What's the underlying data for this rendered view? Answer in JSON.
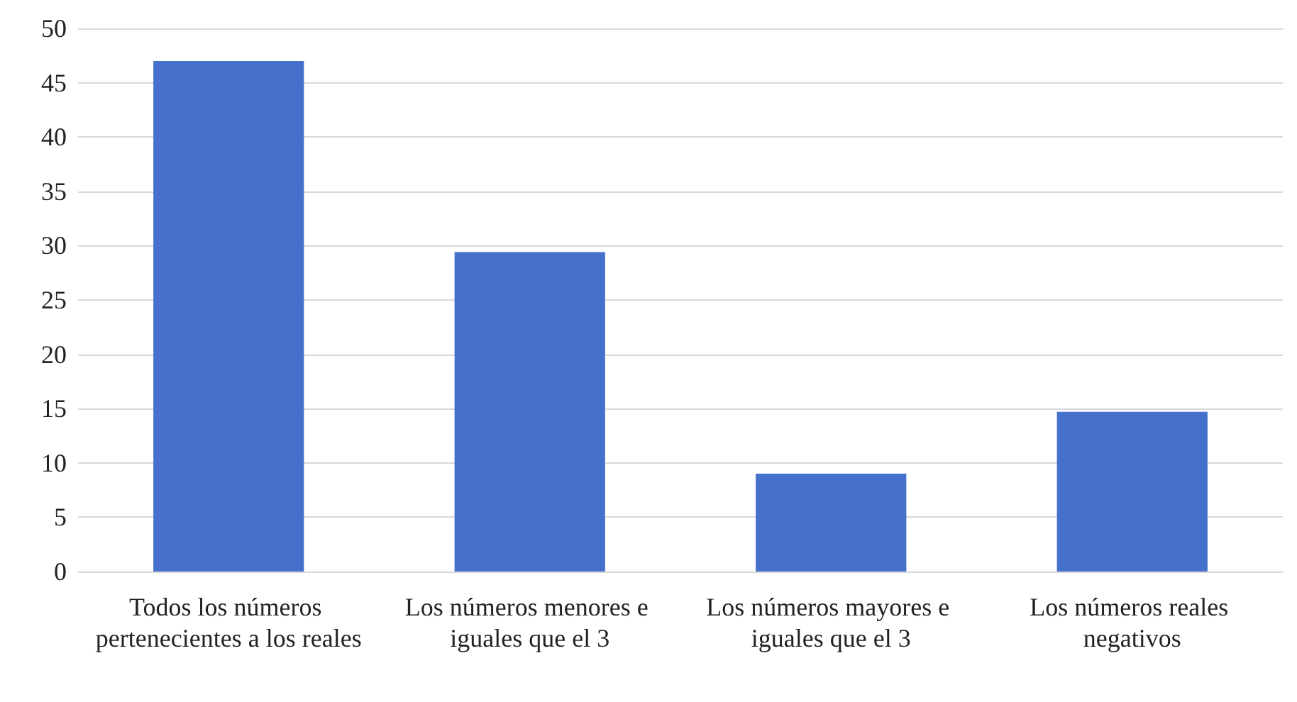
{
  "chart_data": {
    "type": "bar",
    "categories": [
      "Todos los números pertenecientes a los reales",
      "Los números menores e iguales que el 3",
      "Los números mayores e iguales que el 3",
      "Los números reales negativos"
    ],
    "values": [
      47,
      29.4,
      9,
      14.7
    ],
    "color": "#4571cc",
    "ylim": [
      0,
      50
    ],
    "yticks": [
      0,
      5,
      10,
      15,
      20,
      25,
      30,
      35,
      40,
      45,
      50
    ],
    "grid": "y"
  }
}
